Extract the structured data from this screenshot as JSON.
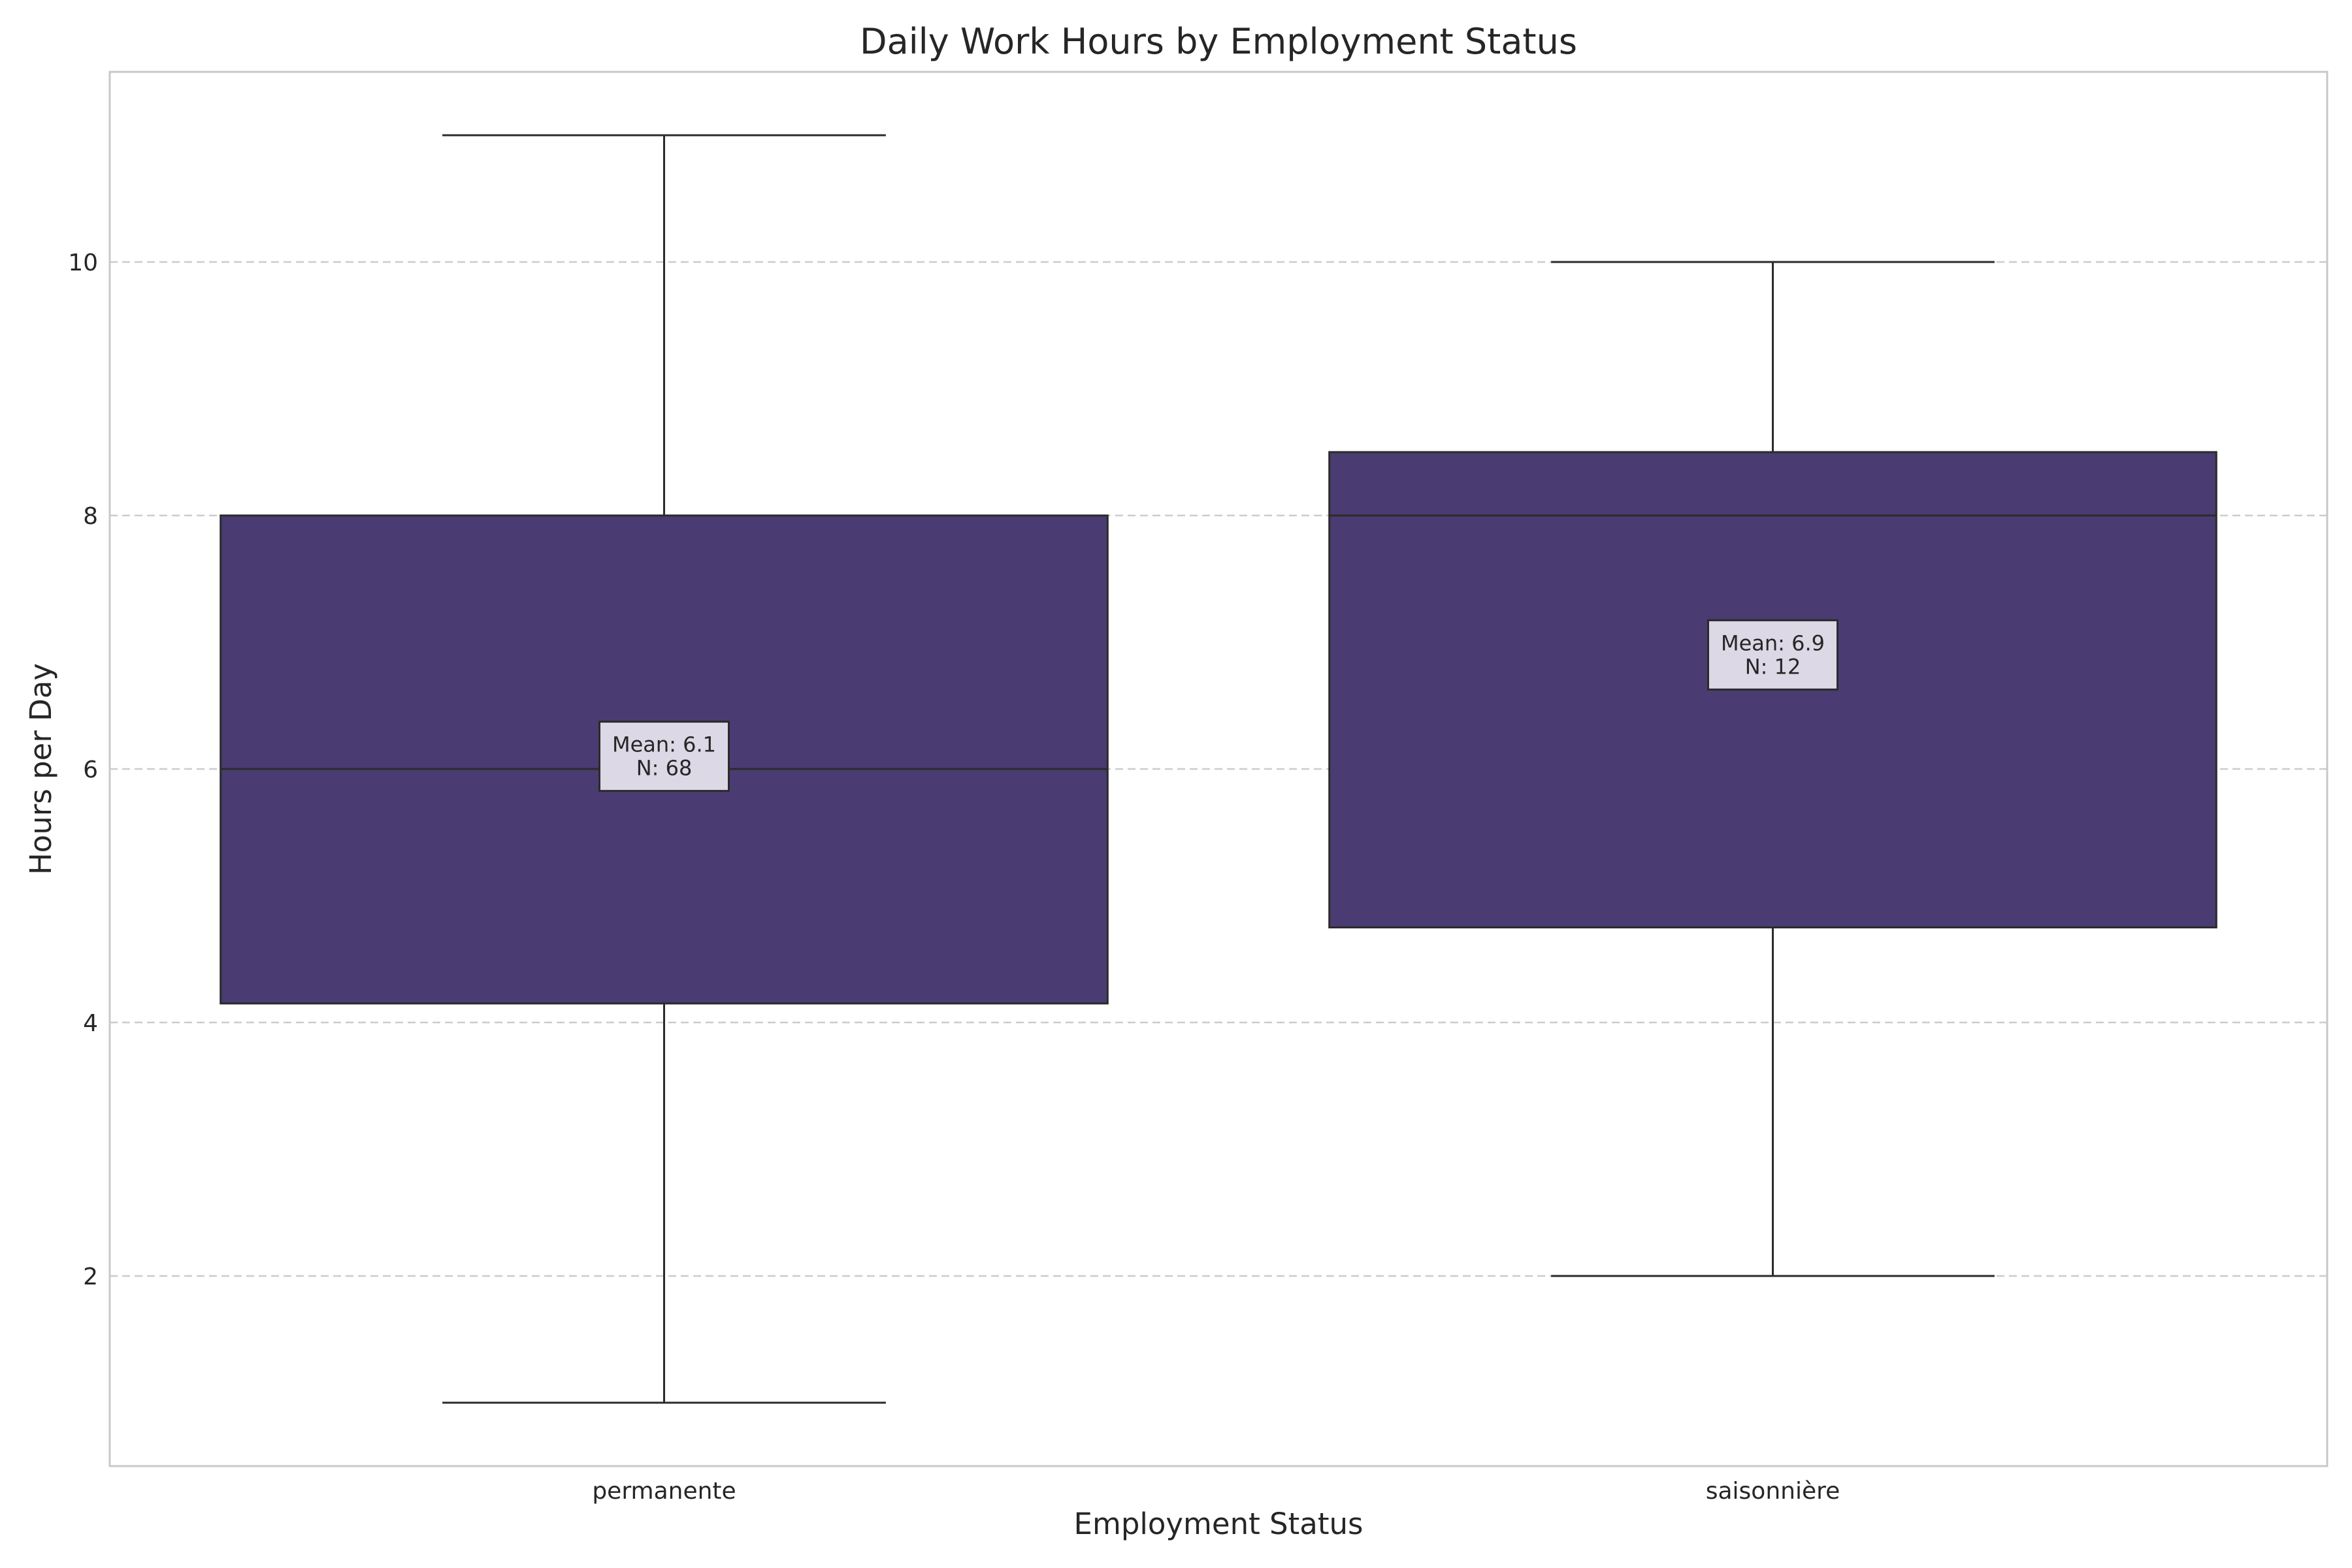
{
  "chart_data": {
    "type": "box",
    "title": "Daily Work Hours by Employment Status",
    "xlabel": "Employment Status",
    "ylabel": "Hours per Day",
    "ylim": [
      0.5,
      11.5
    ],
    "yticks": [
      2,
      4,
      6,
      8,
      10
    ],
    "grid": "y-dashed",
    "categories": [
      "permanente",
      "saisonnière"
    ],
    "boxes": [
      {
        "category": "permanente",
        "whisker_low": 1,
        "q1": 4.15,
        "median": 6,
        "q3": 8,
        "whisker_high": 11,
        "mean": 6.1,
        "n": 68,
        "annotation": [
          "Mean: 6.1",
          "N: 68"
        ]
      },
      {
        "category": "saisonnière",
        "whisker_low": 2,
        "q1": 4.75,
        "median": 8,
        "q3": 8.5,
        "whisker_high": 10,
        "mean": 6.9,
        "n": 12,
        "annotation": [
          "Mean: 6.9",
          "N: 12"
        ]
      }
    ],
    "colors": {
      "box_fill": "#4a3c72",
      "line": "#2b2b2b",
      "grid": "#cccccc",
      "frame": "#c8c8c8",
      "annotation_bg": "#dcd8e6"
    }
  }
}
